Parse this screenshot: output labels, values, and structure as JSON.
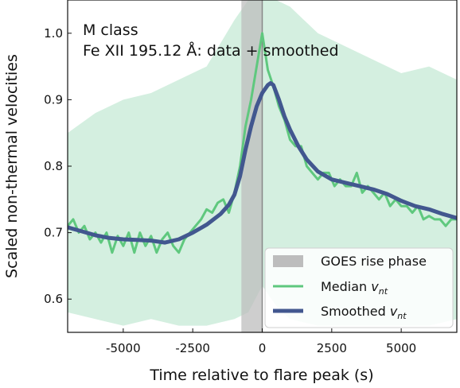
{
  "chart_data": {
    "type": "line",
    "title": "M class",
    "subtitle": "Fe XII 195.12 Å: data + smoothed",
    "xlabel": "Time relative to flare peak (s)",
    "ylabel": "Scaled non-thermal velocities",
    "xlim": [
      -7000,
      7000
    ],
    "ylim": [
      0.55,
      1.05
    ],
    "xticks": [
      -5000,
      -2500,
      0,
      2500,
      5000
    ],
    "xtick_labels": [
      "-5000",
      "-2500",
      "0",
      "2500",
      "5000"
    ],
    "yticks": [
      0.6,
      0.7,
      0.8,
      0.9,
      1.0
    ],
    "ytick_labels": [
      "0.6",
      "0.7",
      "0.8",
      "0.9",
      "1.0"
    ],
    "grid": false,
    "legend_position": "lower-right",
    "rise_phase": {
      "start": -750,
      "end": 0,
      "label": "GOES rise phase",
      "color": "#bdbdbd"
    },
    "peak_line": {
      "x": 0,
      "color": "#888888"
    },
    "uncertainty_band": {
      "color": "#d4efe0",
      "x": [
        -7000,
        -6000,
        -5000,
        -4000,
        -3000,
        -2000,
        -1000,
        -500,
        0,
        500,
        1000,
        2000,
        3000,
        4000,
        5000,
        6000,
        7000
      ],
      "lower": [
        0.58,
        0.57,
        0.56,
        0.57,
        0.56,
        0.56,
        0.57,
        0.58,
        0.62,
        0.59,
        0.57,
        0.56,
        0.56,
        0.56,
        0.56,
        0.56,
        0.57
      ],
      "upper": [
        0.85,
        0.88,
        0.9,
        0.91,
        0.93,
        0.95,
        1.02,
        1.05,
        1.05,
        1.05,
        1.04,
        1.0,
        0.98,
        0.96,
        0.94,
        0.95,
        0.93
      ]
    },
    "series": [
      {
        "name": "Median v_nt",
        "color": "#5fc87e",
        "x": [
          -7000,
          -6800,
          -6600,
          -6400,
          -6200,
          -6000,
          -5800,
          -5600,
          -5400,
          -5200,
          -5000,
          -4800,
          -4600,
          -4400,
          -4200,
          -4000,
          -3800,
          -3600,
          -3400,
          -3200,
          -3000,
          -2800,
          -2600,
          -2400,
          -2200,
          -2000,
          -1800,
          -1600,
          -1400,
          -1200,
          -1000,
          -800,
          -600,
          -400,
          -200,
          0,
          200,
          400,
          600,
          800,
          1000,
          1200,
          1400,
          1600,
          1800,
          2000,
          2200,
          2400,
          2600,
          2800,
          3000,
          3200,
          3400,
          3600,
          3800,
          4000,
          4200,
          4400,
          4600,
          4800,
          5000,
          5200,
          5400,
          5600,
          5800,
          6000,
          6200,
          6400,
          6600,
          6800,
          7000
        ],
        "values": [
          0.71,
          0.72,
          0.7,
          0.71,
          0.69,
          0.7,
          0.685,
          0.7,
          0.67,
          0.695,
          0.68,
          0.7,
          0.67,
          0.7,
          0.68,
          0.695,
          0.67,
          0.69,
          0.7,
          0.68,
          0.67,
          0.69,
          0.7,
          0.71,
          0.72,
          0.735,
          0.73,
          0.745,
          0.75,
          0.73,
          0.76,
          0.8,
          0.86,
          0.9,
          0.95,
          1.0,
          0.945,
          0.92,
          0.89,
          0.87,
          0.84,
          0.83,
          0.83,
          0.8,
          0.79,
          0.78,
          0.79,
          0.79,
          0.77,
          0.78,
          0.77,
          0.77,
          0.79,
          0.76,
          0.77,
          0.76,
          0.75,
          0.76,
          0.74,
          0.75,
          0.74,
          0.74,
          0.73,
          0.74,
          0.72,
          0.725,
          0.72,
          0.72,
          0.71,
          0.72,
          0.72
        ]
      },
      {
        "name": "Smoothed v_nt",
        "color": "#42578f",
        "x": [
          -7000,
          -6500,
          -6000,
          -5500,
          -5000,
          -4500,
          -4000,
          -3500,
          -3000,
          -2500,
          -2000,
          -1500,
          -1200,
          -1000,
          -800,
          -600,
          -400,
          -200,
          0,
          200,
          300,
          400,
          600,
          800,
          1000,
          1300,
          1600,
          2000,
          2500,
          3000,
          3500,
          4000,
          4500,
          5000,
          5500,
          6000,
          6500,
          7000
        ],
        "values": [
          0.708,
          0.702,
          0.696,
          0.692,
          0.69,
          0.689,
          0.688,
          0.685,
          0.69,
          0.7,
          0.712,
          0.728,
          0.742,
          0.757,
          0.785,
          0.825,
          0.86,
          0.89,
          0.91,
          0.922,
          0.925,
          0.922,
          0.9,
          0.875,
          0.855,
          0.83,
          0.81,
          0.792,
          0.78,
          0.775,
          0.77,
          0.765,
          0.758,
          0.748,
          0.74,
          0.735,
          0.728,
          0.722
        ]
      }
    ],
    "legend": {
      "entries": [
        {
          "label": "GOES rise phase",
          "swatch": "patch",
          "color": "#bdbdbd"
        },
        {
          "label_main": "Median ",
          "label_sub": "v",
          "label_subscript": "nt",
          "swatch": "line",
          "color": "#5fc87e"
        },
        {
          "label_main": "Smoothed ",
          "label_sub": "v",
          "label_subscript": "nt",
          "swatch": "line",
          "color": "#42578f"
        }
      ]
    }
  }
}
